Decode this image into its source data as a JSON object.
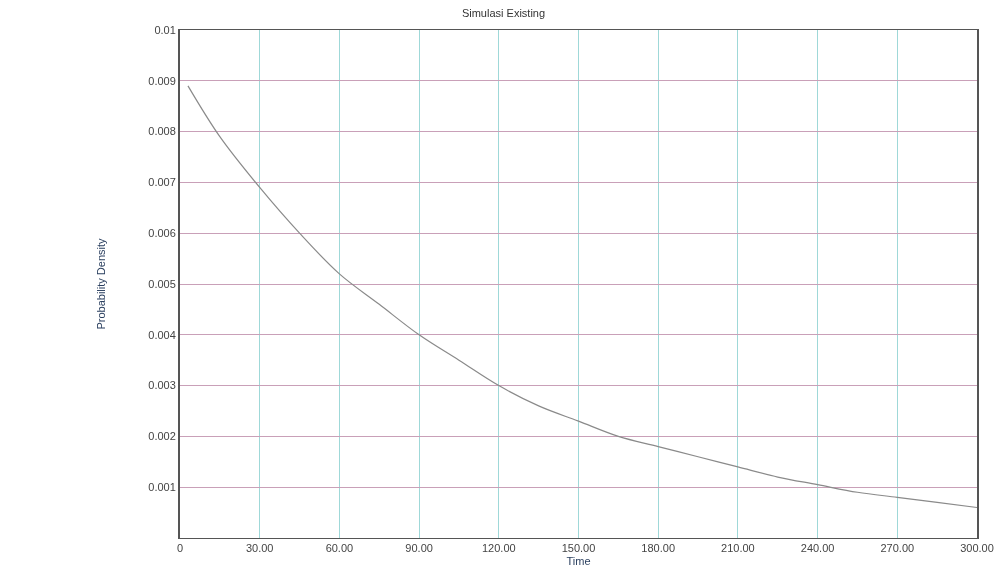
{
  "chart_data": {
    "type": "line",
    "title": "Simulasi Existing",
    "xlabel": "Time",
    "ylabel": "Probability Density",
    "x": [
      3,
      15,
      30,
      45,
      60,
      75,
      90,
      105,
      120,
      135,
      150,
      165,
      180,
      195,
      210,
      225,
      240,
      255,
      270,
      285,
      300
    ],
    "series": [
      {
        "color": "#8a8a8a",
        "values": [
          0.0089,
          0.0079,
          0.0069,
          0.006,
          0.0052,
          0.0046,
          0.004,
          0.0035,
          0.003,
          0.0026,
          0.0023,
          0.002,
          0.0018,
          0.0016,
          0.0014,
          0.0012,
          0.00105,
          0.0009,
          0.0008,
          0.0007,
          0.0006
        ]
      }
    ],
    "xlim": [
      0,
      300
    ],
    "xticks": [
      0,
      {
        "value": 30,
        "label": "30.00"
      },
      {
        "value": 60,
        "label": "60.00"
      },
      {
        "value": 90,
        "label": "90.00"
      },
      {
        "value": 120,
        "label": "120.00"
      },
      {
        "value": 150,
        "label": "150.00"
      },
      {
        "value": 180,
        "label": "180.00"
      },
      {
        "value": 210,
        "label": "210.00"
      },
      {
        "value": 240,
        "label": "240.00"
      },
      {
        "value": 270,
        "label": "270.00"
      },
      {
        "value": 300,
        "label": "300.00"
      }
    ],
    "ylim": [
      0,
      0.01
    ],
    "yticks": [
      {
        "value": 0,
        "label": null
      },
      0.001,
      0.002,
      0.003,
      0.004,
      0.005,
      0.006,
      0.007,
      0.008,
      0.009,
      0.01
    ],
    "grid": true,
    "marker": "none",
    "line_style": "solid"
  }
}
